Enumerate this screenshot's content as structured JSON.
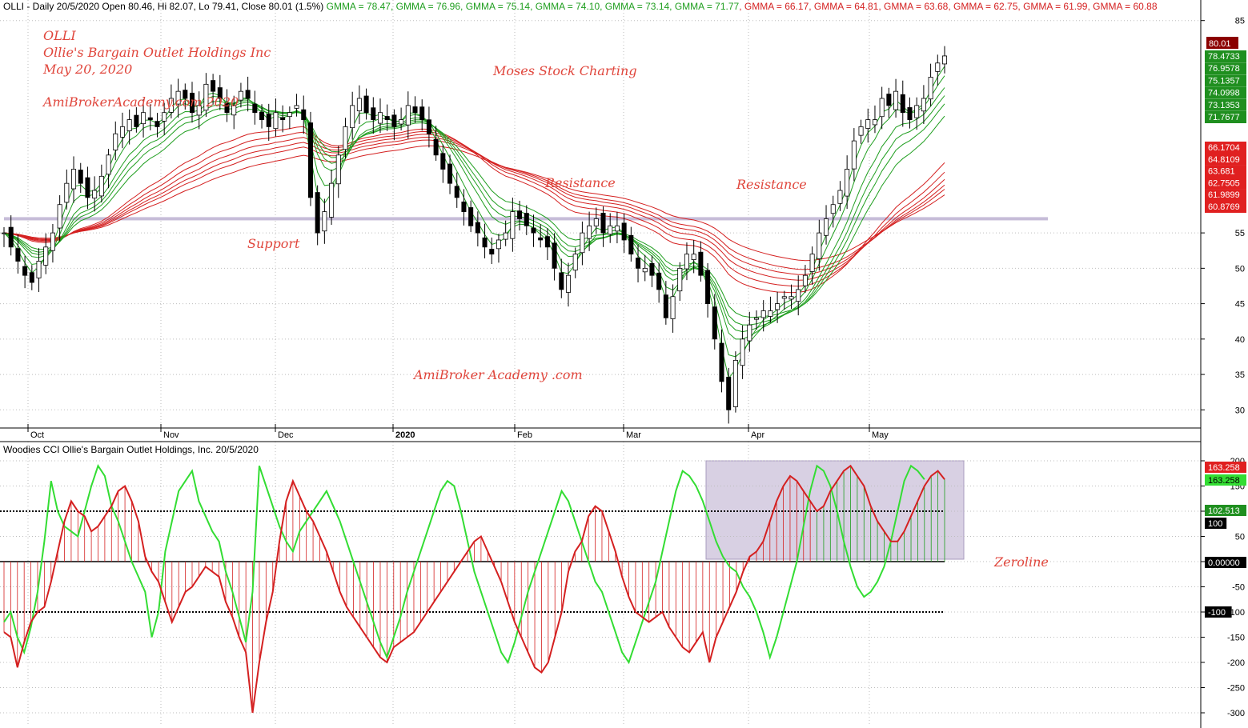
{
  "price_header": {
    "prefix": "OLLI - Daily 20/5/2020 Open 80.46, Hi 82.07, Lo 79.41, Close 80.01 (1.5%)",
    "gmma": [
      {
        "text": "GMMA = 78.47",
        "color": "#1f9e1f"
      },
      {
        "text": "GMMA = 76.96",
        "color": "#1f9e1f"
      },
      {
        "text": "GMMA = 75.14",
        "color": "#1f9e1f"
      },
      {
        "text": "GMMA = 74.10",
        "color": "#1f9e1f"
      },
      {
        "text": "GMMA = 73.14",
        "color": "#1f9e1f"
      },
      {
        "text": "GMMA = 71.77",
        "color": "#1f9e1f"
      },
      {
        "text": "GMMA = 66.17",
        "color": "#d42020"
      },
      {
        "text": "GMMA = 64.81",
        "color": "#d42020"
      },
      {
        "text": "GMMA = 63.68",
        "color": "#d42020"
      },
      {
        "text": "GMMA = 62.75",
        "color": "#d42020"
      },
      {
        "text": "GMMA = 61.99",
        "color": "#d42020"
      },
      {
        "text": "GMMA = 60.88",
        "color": "#d42020"
      }
    ]
  },
  "cci_header": "Woodies CCI  Ollie's Bargain Outlet Holdings, Inc. 20/5/2020",
  "annotations": {
    "ticker": "OLLI",
    "company": "Ollie's Bargain Outlet Holdings Inc",
    "date": "May 20, 2020",
    "site": "AmiBrokerAcademy.com  2020",
    "moses": "Moses Stock Charting",
    "resistance1": "Resistance",
    "resistance2": "Resistance",
    "support": "Support",
    "academy": "AmiBroker Academy .com",
    "zeroline": "Zeroline"
  },
  "colors": {
    "up": "#ffffff",
    "down": "#000000",
    "short_gmma": "#1f9e1f",
    "long_gmma": "#d42020",
    "cci": "#d42020",
    "trend": "#33dd33",
    "band": "#d8d0e3",
    "grid": "#bdbdbd"
  },
  "chart_data": [
    {
      "type": "candlestick",
      "title": "OLLI - Daily 20/5/2020",
      "ylim": [
        28,
        87
      ],
      "yticks": [
        30,
        35,
        40,
        45,
        50,
        55,
        85
      ],
      "x_labels": [
        "Oct",
        "Nov",
        "Dec",
        "2020",
        "Feb",
        "Mar",
        "Apr",
        "May"
      ],
      "support_resistance_level": 57,
      "last_close": "80.01",
      "gmma_last_labels": {
        "short": [
          "78.4733",
          "76.9578",
          "75.1357",
          "74.0998",
          "73.1353",
          "71.7677"
        ],
        "long": [
          "66.1704",
          "64.8109",
          "63.681",
          "62.7505",
          "61.9899",
          "60.8769"
        ]
      },
      "closes": [
        55,
        53,
        51,
        49,
        48,
        51,
        53,
        55,
        59,
        62,
        64,
        62,
        60,
        61,
        63,
        66,
        69,
        70,
        71,
        70,
        72,
        71,
        70,
        72,
        74,
        75,
        74,
        72,
        73,
        76,
        75,
        74,
        72,
        73,
        75,
        74,
        72,
        71,
        70,
        72,
        71,
        72,
        73,
        71,
        60,
        55,
        58,
        62,
        66,
        70,
        73,
        74,
        72,
        71,
        72,
        71,
        70,
        71,
        73,
        72,
        71,
        69,
        66,
        64,
        62,
        60,
        58,
        56,
        55,
        53,
        52,
        54,
        55,
        58,
        57,
        56,
        55,
        54,
        53,
        50,
        47,
        49,
        52,
        55,
        56,
        57,
        55,
        56,
        56,
        54,
        52,
        50,
        50,
        49,
        47,
        43,
        46,
        50,
        52,
        52,
        49,
        45,
        40,
        34,
        30,
        37,
        40,
        42,
        43,
        44,
        44,
        45,
        46,
        46,
        47,
        49,
        52,
        55,
        57,
        59,
        61,
        64,
        68,
        70,
        71,
        71,
        74,
        73,
        75,
        72,
        71,
        73,
        74,
        77,
        79,
        80
      ],
      "ema_periods_short": [
        3,
        5,
        8,
        10,
        12,
        15
      ],
      "ema_periods_long": [
        30,
        35,
        40,
        45,
        50,
        60
      ]
    },
    {
      "type": "line",
      "title": "Woodies CCI",
      "ylim": [
        -315,
        210
      ],
      "yticks": [
        -300,
        -250,
        -200,
        -150,
        -100,
        -50,
        0,
        50,
        100,
        150,
        200
      ],
      "levels": [
        100,
        0,
        -100
      ],
      "series": [
        {
          "name": "CCI",
          "color": "#d42020",
          "values": [
            -140,
            -150,
            -210,
            -160,
            -120,
            -100,
            -90,
            -40,
            20,
            80,
            120,
            100,
            90,
            60,
            70,
            90,
            110,
            140,
            150,
            120,
            80,
            10,
            -20,
            -40,
            -80,
            -120,
            -90,
            -60,
            -50,
            -30,
            -10,
            -20,
            -30,
            -80,
            -110,
            -150,
            -180,
            -300,
            -200,
            -120,
            -60,
            40,
            120,
            160,
            130,
            100,
            80,
            50,
            20,
            -20,
            -60,
            -90,
            -110,
            -130,
            -150,
            -170,
            -190,
            -200,
            -170,
            -160,
            -150,
            -140,
            -120,
            -100,
            -80,
            -60,
            -40,
            -20,
            0,
            20,
            40,
            50,
            20,
            -10,
            -40,
            -80,
            -120,
            -150,
            -180,
            -210,
            -220,
            -200,
            -150,
            -100,
            -20,
            20,
            40,
            90,
            110,
            100,
            60,
            20,
            -30,
            -70,
            -100,
            -110,
            -120,
            -110,
            -100,
            -130,
            -150,
            -170,
            -180,
            -160,
            -140,
            -200,
            -150,
            -120,
            -90,
            -60,
            -20,
            10,
            20,
            40,
            80,
            120,
            150,
            170,
            160,
            140,
            120,
            100,
            110,
            140,
            160,
            180,
            190,
            170,
            150,
            110,
            80,
            60,
            40,
            40,
            60,
            90,
            120,
            150,
            170,
            180,
            163
          ]
        },
        {
          "name": "Trend",
          "color": "#33dd33",
          "values": [
            -120,
            -100,
            -150,
            -180,
            -130,
            -60,
            40,
            160,
            100,
            70,
            60,
            50,
            100,
            150,
            190,
            170,
            110,
            80,
            40,
            0,
            -30,
            -60,
            -150,
            -100,
            20,
            80,
            140,
            160,
            180,
            120,
            90,
            60,
            40,
            -20,
            -60,
            -110,
            -160,
            -60,
            190,
            150,
            110,
            70,
            40,
            20,
            60,
            80,
            100,
            120,
            140,
            110,
            80,
            40,
            0,
            -40,
            -80,
            -120,
            -160,
            -190,
            -150,
            -110,
            -60,
            -20,
            20,
            60,
            100,
            140,
            160,
            150,
            100,
            40,
            -20,
            -60,
            -100,
            -140,
            -180,
            -200,
            -160,
            -110,
            -60,
            -20,
            20,
            60,
            100,
            140,
            120,
            80,
            40,
            0,
            -40,
            -60,
            -100,
            -140,
            -180,
            -200,
            -160,
            -120,
            -80,
            -40,
            20,
            80,
            140,
            180,
            170,
            150,
            120,
            80,
            40,
            10,
            -10,
            -20,
            -50,
            -70,
            -100,
            -140,
            -190,
            -150,
            -100,
            -50,
            0,
            70,
            140,
            190,
            180,
            150,
            100,
            40,
            -10,
            -50,
            -70,
            -60,
            -40,
            -10,
            40,
            100,
            160,
            190,
            180,
            163
          ]
        }
      ],
      "last_values": [
        "163.258",
        "163.258",
        "102.513",
        "100",
        "0.00000",
        "-100"
      ],
      "zeroline": 0
    }
  ]
}
